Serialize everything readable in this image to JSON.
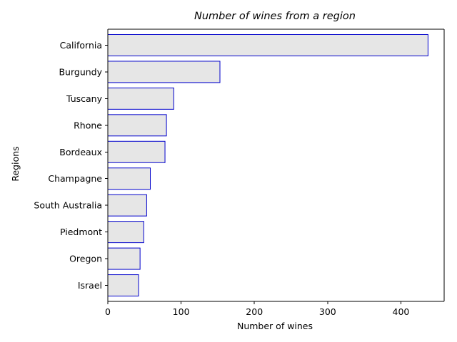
{
  "chart_data": {
    "type": "bar",
    "orientation": "horizontal",
    "title": "Number of wines from a region",
    "xlabel": "Number of wines",
    "ylabel": "Regions",
    "categories": [
      "California",
      "Burgundy",
      "Tuscany",
      "Rhone",
      "Bordeaux",
      "Champagne",
      "South Australia",
      "Piedmont",
      "Oregon",
      "Israel"
    ],
    "values": [
      437,
      153,
      90,
      80,
      78,
      58,
      53,
      49,
      44,
      42
    ],
    "xlim": [
      0,
      459
    ],
    "xticks": [
      0,
      100,
      200,
      300,
      400
    ],
    "grid": false,
    "bar_fill": "#e6e6e6",
    "bar_edge": "#0000cc"
  }
}
